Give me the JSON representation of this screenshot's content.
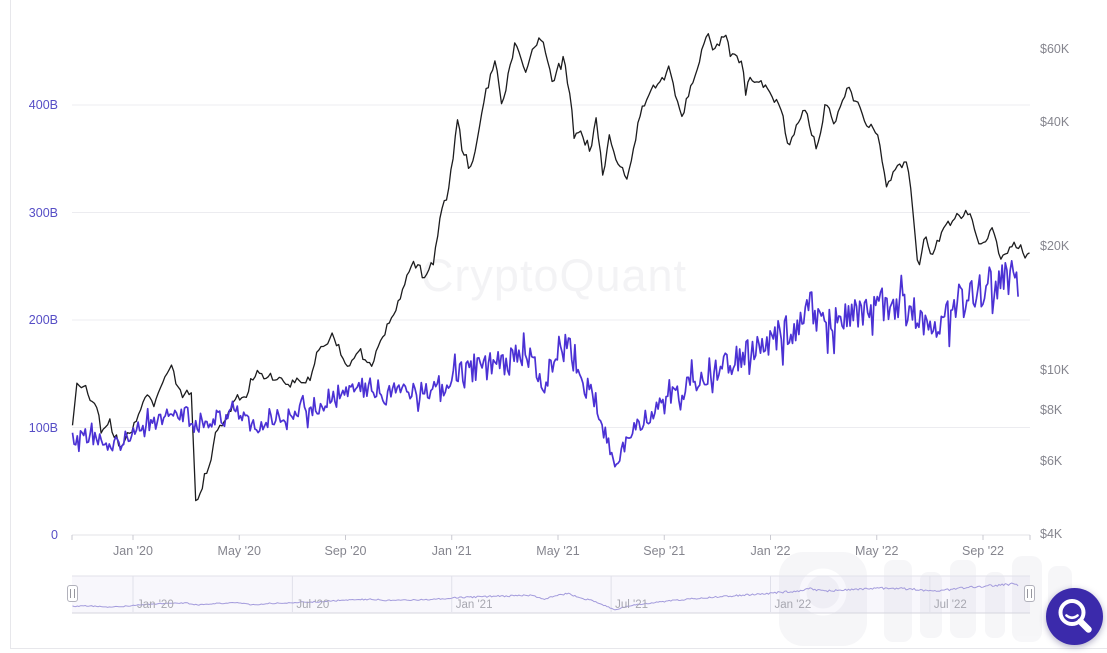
{
  "watermark": {
    "text": "CryptoQuant"
  },
  "fab": {
    "name": "magnifier-search-button"
  },
  "colors": {
    "price_line": "#1c1c1e",
    "left_series_line": "#4b31d4",
    "navigator_line": "#a39bdc",
    "left_axis_label": "#564ec6",
    "right_axis_label": "#85858e",
    "fab_background": "#3b2aab"
  },
  "chart_data": {
    "type": "line",
    "title": "",
    "xlabel": "",
    "ylabel_left": "",
    "ylabel_right": "",
    "grid": "horizontal-only",
    "legend_position": "none",
    "x_axis": {
      "labels": [
        "Jan '20",
        "May '20",
        "Sep '20",
        "Jan '21",
        "May '21",
        "Sep '21",
        "Jan '22",
        "May '22",
        "Sep '22"
      ],
      "dates": [
        "2020-01-01",
        "2020-05-01",
        "2020-09-01",
        "2021-01-01",
        "2021-05-01",
        "2021-09-01",
        "2022-01-01",
        "2022-05-01",
        "2022-09-01"
      ],
      "range_start": "2019-10-23",
      "range_end": "2022-10-24"
    },
    "left_axis": {
      "scale": "linear",
      "labels": [
        "0",
        "100B",
        "200B",
        "300B",
        "400B"
      ],
      "values": [
        0,
        100,
        200,
        300,
        400
      ],
      "lim": [
        0,
        480
      ]
    },
    "right_axis": {
      "scale": "log",
      "labels": [
        "$4K",
        "$6K",
        "$8K",
        "$10K",
        "$20K",
        "$40K",
        "$60K"
      ],
      "values": [
        4000,
        6000,
        8000,
        10000,
        20000,
        40000,
        60000
      ],
      "lim": [
        4000,
        72000
      ]
    },
    "navigator": {
      "labels": [
        "Jan '20",
        "Jul '20",
        "Jan '21",
        "Jul '21",
        "Jan '22",
        "Jul '22"
      ],
      "dates": [
        "2020-01-01",
        "2020-07-01",
        "2021-01-01",
        "2021-07-01",
        "2022-01-01",
        "2022-07-01"
      ],
      "selected_range": [
        "2019-10-23",
        "2022-10-24"
      ]
    },
    "series": [
      {
        "name": "right-axis-price-usd",
        "axis": "right",
        "color": "#1c1c1e",
        "points": [
          [
            "2019-10-23",
            7450
          ],
          [
            "2019-10-25",
            7550
          ],
          [
            "2019-10-26",
            9500
          ],
          [
            "2019-11-04",
            9300
          ],
          [
            "2019-11-20",
            8100
          ],
          [
            "2019-11-25",
            6900
          ],
          [
            "2019-12-05",
            7400
          ],
          [
            "2019-12-18",
            6600
          ],
          [
            "2020-01-03",
            7300
          ],
          [
            "2020-01-14",
            8820
          ],
          [
            "2020-01-26",
            8320
          ],
          [
            "2020-02-09",
            10150
          ],
          [
            "2020-02-15",
            10350
          ],
          [
            "2020-02-26",
            8800
          ],
          [
            "2020-03-07",
            8900
          ],
          [
            "2020-03-12",
            4900
          ],
          [
            "2020-03-16",
            5050
          ],
          [
            "2020-03-29",
            5900
          ],
          [
            "2020-04-07",
            7300
          ],
          [
            "2020-04-30",
            8750
          ],
          [
            "2020-05-10",
            8550
          ],
          [
            "2020-05-14",
            9750
          ],
          [
            "2020-06-02",
            9500
          ],
          [
            "2020-06-27",
            9050
          ],
          [
            "2020-07-21",
            9350
          ],
          [
            "2020-07-28",
            11000
          ],
          [
            "2020-08-17",
            12250
          ],
          [
            "2020-09-05",
            10200
          ],
          [
            "2020-09-20",
            10950
          ],
          [
            "2020-10-01",
            10550
          ],
          [
            "2020-10-21",
            12750
          ],
          [
            "2020-11-06",
            15550
          ],
          [
            "2020-11-18",
            17800
          ],
          [
            "2020-11-25",
            19100
          ],
          [
            "2020-11-27",
            17100
          ],
          [
            "2020-12-11",
            18050
          ],
          [
            "2020-12-17",
            22800
          ],
          [
            "2020-12-27",
            26400
          ],
          [
            "2021-01-03",
            33000
          ],
          [
            "2021-01-08",
            40600
          ],
          [
            "2021-01-12",
            34000
          ],
          [
            "2021-01-22",
            31000
          ],
          [
            "2021-01-29",
            34300
          ],
          [
            "2021-02-08",
            46400
          ],
          [
            "2021-02-21",
            57400
          ],
          [
            "2021-02-28",
            45200
          ],
          [
            "2021-03-13",
            61200
          ],
          [
            "2021-03-25",
            51400
          ],
          [
            "2021-04-02",
            59000
          ],
          [
            "2021-04-13",
            63500
          ],
          [
            "2021-04-25",
            49100
          ],
          [
            "2021-05-08",
            58800
          ],
          [
            "2021-05-17",
            43600
          ],
          [
            "2021-05-19",
            36700
          ],
          [
            "2021-05-26",
            39300
          ],
          [
            "2021-06-08",
            33400
          ],
          [
            "2021-06-14",
            40500
          ],
          [
            "2021-06-22",
            28900
          ],
          [
            "2021-06-29",
            35900
          ],
          [
            "2021-07-20",
            29800
          ],
          [
            "2021-08-01",
            39900
          ],
          [
            "2021-08-13",
            47800
          ],
          [
            "2021-08-25",
            47700
          ],
          [
            "2021-09-06",
            52700
          ],
          [
            "2021-09-21",
            40700
          ],
          [
            "2021-10-05",
            51500
          ],
          [
            "2021-10-20",
            66000
          ],
          [
            "2021-10-27",
            58500
          ],
          [
            "2021-11-10",
            68000
          ],
          [
            "2021-11-18",
            56500
          ],
          [
            "2021-11-28",
            54700
          ],
          [
            "2021-12-03",
            47000
          ],
          [
            "2021-12-08",
            50700
          ],
          [
            "2021-12-30",
            46200
          ],
          [
            "2022-01-12",
            43900
          ],
          [
            "2022-01-22",
            35100
          ],
          [
            "2022-02-10",
            44500
          ],
          [
            "2022-02-24",
            35000
          ],
          [
            "2022-03-02",
            44400
          ],
          [
            "2022-03-14",
            38700
          ],
          [
            "2022-03-29",
            47400
          ],
          [
            "2022-04-18",
            40800
          ],
          [
            "2022-04-30",
            38600
          ],
          [
            "2022-05-09",
            30100
          ],
          [
            "2022-05-12",
            27000
          ],
          [
            "2022-05-23",
            30300
          ],
          [
            "2022-06-06",
            31300
          ],
          [
            "2022-06-13",
            22500
          ],
          [
            "2022-06-18",
            17800
          ],
          [
            "2022-06-26",
            21200
          ],
          [
            "2022-07-03",
            19200
          ],
          [
            "2022-07-20",
            23300
          ],
          [
            "2022-08-08",
            23800
          ],
          [
            "2022-08-14",
            24400
          ],
          [
            "2022-08-28",
            19600
          ],
          [
            "2022-09-12",
            22400
          ],
          [
            "2022-09-21",
            18700
          ],
          [
            "2022-10-03",
            19600
          ],
          [
            "2022-10-14",
            19200
          ],
          [
            "2022-10-24",
            19350
          ]
        ]
      },
      {
        "name": "left-axis-series-billions",
        "axis": "left",
        "color": "#4b31d4",
        "points": [
          [
            "2019-10-23",
            90
          ],
          [
            "2019-11-10",
            92
          ],
          [
            "2019-12-01",
            85
          ],
          [
            "2019-12-20",
            88
          ],
          [
            "2020-01-10",
            100
          ],
          [
            "2020-02-01",
            108
          ],
          [
            "2020-03-01",
            112
          ],
          [
            "2020-03-15",
            98
          ],
          [
            "2020-04-01",
            108
          ],
          [
            "2020-05-01",
            115
          ],
          [
            "2020-05-15",
            98
          ],
          [
            "2020-06-01",
            108
          ],
          [
            "2020-07-01",
            115
          ],
          [
            "2020-08-01",
            122
          ],
          [
            "2020-09-01",
            132
          ],
          [
            "2020-10-01",
            138
          ],
          [
            "2020-10-25",
            128
          ],
          [
            "2020-11-15",
            132
          ],
          [
            "2020-12-10",
            138
          ],
          [
            "2021-01-05",
            148
          ],
          [
            "2021-02-01",
            155
          ],
          [
            "2021-03-01",
            160
          ],
          [
            "2021-04-01",
            165
          ],
          [
            "2021-04-16",
            140
          ],
          [
            "2021-05-01",
            165
          ],
          [
            "2021-05-13",
            178
          ],
          [
            "2021-05-25",
            150
          ],
          [
            "2021-06-10",
            128
          ],
          [
            "2021-06-28",
            85
          ],
          [
            "2021-07-05",
            65
          ],
          [
            "2021-07-20",
            90
          ],
          [
            "2021-08-05",
            105
          ],
          [
            "2021-08-25",
            118
          ],
          [
            "2021-09-15",
            132
          ],
          [
            "2021-10-05",
            142
          ],
          [
            "2021-10-25",
            152
          ],
          [
            "2021-11-15",
            160
          ],
          [
            "2021-12-05",
            168
          ],
          [
            "2021-12-25",
            175
          ],
          [
            "2022-01-15",
            188
          ],
          [
            "2022-02-05",
            195
          ],
          [
            "2022-02-15",
            212
          ],
          [
            "2022-03-01",
            195
          ],
          [
            "2022-03-20",
            200
          ],
          [
            "2022-04-10",
            208
          ],
          [
            "2022-05-01",
            215
          ],
          [
            "2022-05-20",
            212
          ],
          [
            "2022-06-10",
            210
          ],
          [
            "2022-06-25",
            200
          ],
          [
            "2022-07-10",
            198
          ],
          [
            "2022-07-25",
            205
          ],
          [
            "2022-08-10",
            218
          ],
          [
            "2022-08-25",
            224
          ],
          [
            "2022-09-10",
            232
          ],
          [
            "2022-09-25",
            238
          ],
          [
            "2022-10-05",
            248
          ],
          [
            "2022-10-12",
            235
          ]
        ]
      }
    ]
  }
}
